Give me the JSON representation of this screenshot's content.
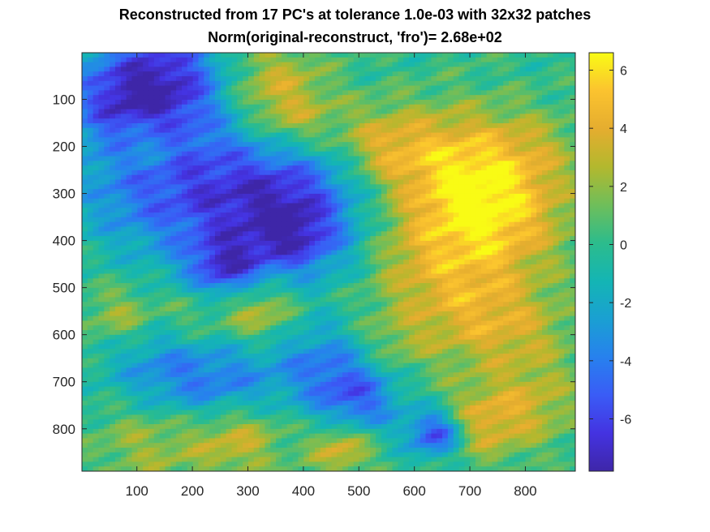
{
  "chart_data": {
    "type": "heatmap",
    "title": "Reconstructed from 17 PC's at tolerance 1.0e-03 with 32x32 patches",
    "subtitle": "Norm(original-reconstruct, 'fro')= 2.68e+02",
    "xlabel": "",
    "ylabel": "",
    "xlim": [
      1,
      890
    ],
    "ylim": [
      1,
      890
    ],
    "y_reversed": true,
    "x_ticks": [
      100,
      200,
      300,
      400,
      500,
      600,
      700,
      800
    ],
    "y_ticks": [
      100,
      200,
      300,
      400,
      500,
      600,
      700,
      800
    ],
    "color_range": [
      -7.8,
      6.6
    ],
    "colorbar_ticks": [
      6,
      4,
      2,
      0,
      -2,
      -4,
      -6
    ],
    "colormap": "parula",
    "colormap_stops": [
      "#3e26a8",
      "#4433e1",
      "#3a5cf6",
      "#2781ee",
      "#1aa0d2",
      "#14b5b4",
      "#2cbc8c",
      "#6fbe5a",
      "#b3b82e",
      "#e5ad2f",
      "#fbc32f",
      "#f9fb15"
    ],
    "field_features": [
      {
        "x": 160,
        "y": 60,
        "value": -6.5,
        "spread": 90
      },
      {
        "x": 60,
        "y": 110,
        "value": -4,
        "spread": 70
      },
      {
        "x": 330,
        "y": 60,
        "value": 3.5,
        "spread": 70
      },
      {
        "x": 390,
        "y": 150,
        "value": 2.5,
        "spread": 55
      },
      {
        "x": 430,
        "y": 300,
        "value": -3.5,
        "spread": 85
      },
      {
        "x": 330,
        "y": 280,
        "value": -3,
        "spread": 80
      },
      {
        "x": 250,
        "y": 380,
        "value": -3.5,
        "spread": 95
      },
      {
        "x": 200,
        "y": 250,
        "value": -2.5,
        "spread": 80
      },
      {
        "x": 80,
        "y": 300,
        "value": -2.8,
        "spread": 80
      },
      {
        "x": 120,
        "y": 190,
        "value": 2,
        "spread": 45
      },
      {
        "x": 540,
        "y": 200,
        "value": 3.5,
        "spread": 60
      },
      {
        "x": 680,
        "y": 220,
        "value": 3.5,
        "spread": 80
      },
      {
        "x": 760,
        "y": 330,
        "value": 4,
        "spread": 90
      },
      {
        "x": 650,
        "y": 400,
        "value": 3.5,
        "spread": 110
      },
      {
        "x": 820,
        "y": 200,
        "value": 1.5,
        "spread": 60
      },
      {
        "x": 560,
        "y": 450,
        "value": 0.5,
        "spread": 60
      },
      {
        "x": 480,
        "y": 420,
        "value": -1.5,
        "spread": 60
      },
      {
        "x": 700,
        "y": 560,
        "value": 2.5,
        "spread": 80
      },
      {
        "x": 800,
        "y": 600,
        "value": 2,
        "spread": 70
      },
      {
        "x": 320,
        "y": 550,
        "value": 3.5,
        "spread": 45
      },
      {
        "x": 200,
        "y": 560,
        "value": 2,
        "spread": 50
      },
      {
        "x": 70,
        "y": 560,
        "value": 2.5,
        "spread": 45
      },
      {
        "x": 150,
        "y": 680,
        "value": -3.5,
        "spread": 75
      },
      {
        "x": 270,
        "y": 720,
        "value": -3.5,
        "spread": 65
      },
      {
        "x": 430,
        "y": 660,
        "value": -3.5,
        "spread": 65
      },
      {
        "x": 500,
        "y": 740,
        "value": -4.5,
        "spread": 55
      },
      {
        "x": 280,
        "y": 810,
        "value": 4,
        "spread": 60
      },
      {
        "x": 120,
        "y": 820,
        "value": 2.5,
        "spread": 70
      },
      {
        "x": 640,
        "y": 810,
        "value": -6.5,
        "spread": 35
      },
      {
        "x": 720,
        "y": 790,
        "value": 3.5,
        "spread": 55
      },
      {
        "x": 820,
        "y": 750,
        "value": 2.5,
        "spread": 60
      },
      {
        "x": 470,
        "y": 840,
        "value": 4,
        "spread": 40
      },
      {
        "x": 560,
        "y": 620,
        "value": 1.5,
        "spread": 50
      },
      {
        "x": 260,
        "y": 460,
        "value": -4.5,
        "spread": 45
      },
      {
        "x": 380,
        "y": 400,
        "value": -4,
        "spread": 55
      }
    ]
  }
}
